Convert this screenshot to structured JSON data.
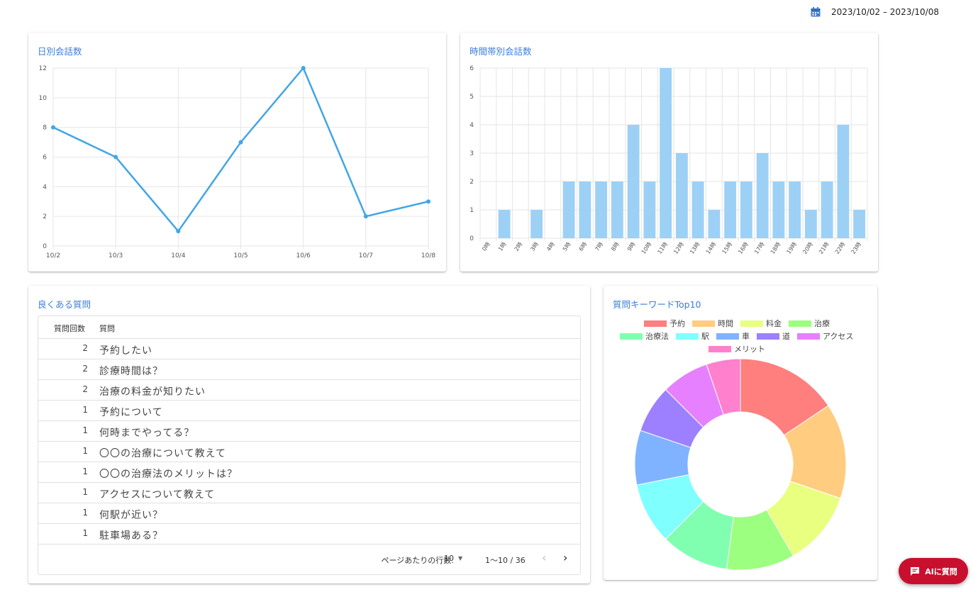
{
  "header": {
    "date_range": "2023/10/02 – 2023/10/08"
  },
  "daily": {
    "title": "日別会話数",
    "chart_data": {
      "type": "line",
      "categories": [
        "10/2",
        "10/3",
        "10/4",
        "10/5",
        "10/6",
        "10/7",
        "10/8"
      ],
      "values": [
        8,
        6,
        1,
        7,
        12,
        2,
        3
      ],
      "ylim": [
        0,
        12
      ],
      "yticks": [
        0,
        2,
        4,
        6,
        8,
        10,
        12
      ],
      "color": "#42a5e6",
      "grid": true
    }
  },
  "hourly": {
    "title": "時間帯別会話数",
    "chart_data": {
      "type": "bar",
      "categories": [
        "0時",
        "1時",
        "2時",
        "3時",
        "4時",
        "5時",
        "6時",
        "7時",
        "8時",
        "9時",
        "10時",
        "11時",
        "12時",
        "13時",
        "14時",
        "15時",
        "16時",
        "17時",
        "18時",
        "19時",
        "20時",
        "21時",
        "22時",
        "23時"
      ],
      "values": [
        0,
        1,
        0,
        1,
        0,
        2,
        2,
        2,
        2,
        4,
        2,
        6,
        3,
        2,
        1,
        2,
        2,
        3,
        2,
        2,
        1,
        2,
        4,
        1
      ],
      "ylim": [
        0,
        6
      ],
      "yticks": [
        0,
        1,
        2,
        3,
        4,
        5,
        6
      ],
      "color": "#9dd0f5",
      "grid": true
    }
  },
  "faq": {
    "title": "良くある質問",
    "col_count": "質問回数",
    "col_question": "質問",
    "rows": [
      {
        "count": "2",
        "question": "予約したい"
      },
      {
        "count": "2",
        "question": "診療時間は？"
      },
      {
        "count": "2",
        "question": "治療の料金が知りたい"
      },
      {
        "count": "1",
        "question": "予約について"
      },
      {
        "count": "1",
        "question": "何時までやってる？"
      },
      {
        "count": "1",
        "question": "〇〇の治療について教えて"
      },
      {
        "count": "1",
        "question": "〇〇の治療法のメリットは？"
      },
      {
        "count": "1",
        "question": "アクセスについて教えて"
      },
      {
        "count": "1",
        "question": "何駅が近い？"
      },
      {
        "count": "1",
        "question": "駐車場ある？"
      }
    ],
    "pagination": {
      "rows_per_page_label": "ページあたりの行数:",
      "rows_per_page": "10",
      "range": "1〜10 / 36"
    }
  },
  "keywords": {
    "title": "質問キーワードTop10",
    "chart_data": {
      "type": "pie",
      "labels": [
        "予約",
        "時間",
        "料金",
        "治療",
        "治療法",
        "駅",
        "車",
        "道",
        "アクセス",
        "メリット"
      ],
      "values": [
        15,
        14,
        11,
        10,
        10,
        9,
        8,
        7,
        7,
        5
      ],
      "colors": [
        "#ff7f7f",
        "#ffcc80",
        "#e8ff80",
        "#9dff7f",
        "#80ffb0",
        "#80ffff",
        "#80b3ff",
        "#9d80ff",
        "#e680ff",
        "#ff80cc"
      ],
      "legend_position": "top"
    }
  },
  "ai_button": {
    "label": "AIに質問"
  }
}
